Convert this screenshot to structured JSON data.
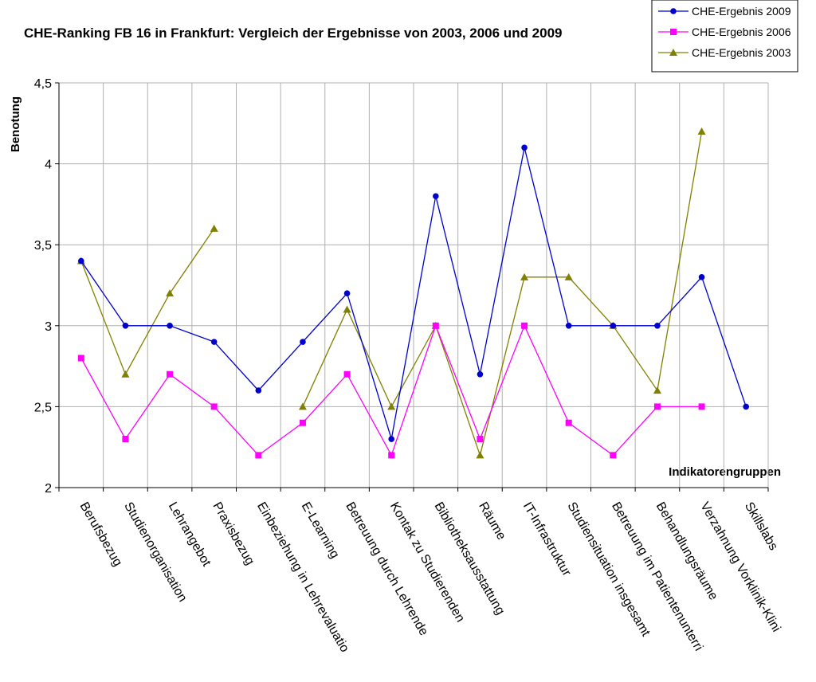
{
  "chart_data": {
    "type": "line",
    "title": "CHE-Ranking FB 16 in Frankfurt: Vergleich der Ergebnisse von 2003, 2006 und 2009",
    "xlabel": "Indikatorengruppen",
    "ylabel": "Benotung",
    "ylim": [
      2,
      4.5
    ],
    "yticks": [
      "2",
      "2,5",
      "3",
      "3,5",
      "4",
      "4,5"
    ],
    "ytick_values": [
      2,
      2.5,
      3,
      3.5,
      4,
      4.5
    ],
    "grid": true,
    "legend_position": "top-right",
    "categories": [
      "Berufsbezug",
      "Studienorganisation",
      "Lehrangebot",
      "Praxisbezug",
      "Einbeziehung in Lehrevaluatio",
      "E-Learning",
      "Betreuung durch Lehrende",
      "Kontak zu Studierenden",
      "Bibliotheksausstattung",
      "Räume",
      "IT-Infrastruktur",
      "Studiensituation insgesamt",
      "Betreuung im Patientenunterri",
      "Behandlungsräume",
      "Verzahnung Vorklinik-Klini",
      "Skillslabs"
    ],
    "series": [
      {
        "name": "CHE-Ergebnis 2009",
        "color": "#0000cc",
        "marker": "circle",
        "values": [
          3.4,
          3.0,
          3.0,
          2.9,
          2.6,
          2.9,
          3.2,
          2.3,
          3.8,
          2.7,
          4.1,
          3.0,
          3.0,
          3.0,
          3.3,
          2.5
        ]
      },
      {
        "name": "CHE-Ergebnis 2006",
        "color": "#ff00ff",
        "marker": "square",
        "values": [
          2.8,
          2.3,
          2.7,
          2.5,
          2.2,
          2.4,
          2.7,
          2.2,
          3.0,
          2.3,
          3.0,
          2.4,
          2.2,
          2.5,
          2.5,
          null
        ]
      },
      {
        "name": "CHE-Ergebnis 2003",
        "color": "#808000",
        "marker": "triangle",
        "values": [
          3.4,
          2.7,
          3.2,
          3.6,
          null,
          2.5,
          3.1,
          2.5,
          3.0,
          2.2,
          3.3,
          3.3,
          3.0,
          2.6,
          4.2,
          null
        ]
      }
    ]
  }
}
